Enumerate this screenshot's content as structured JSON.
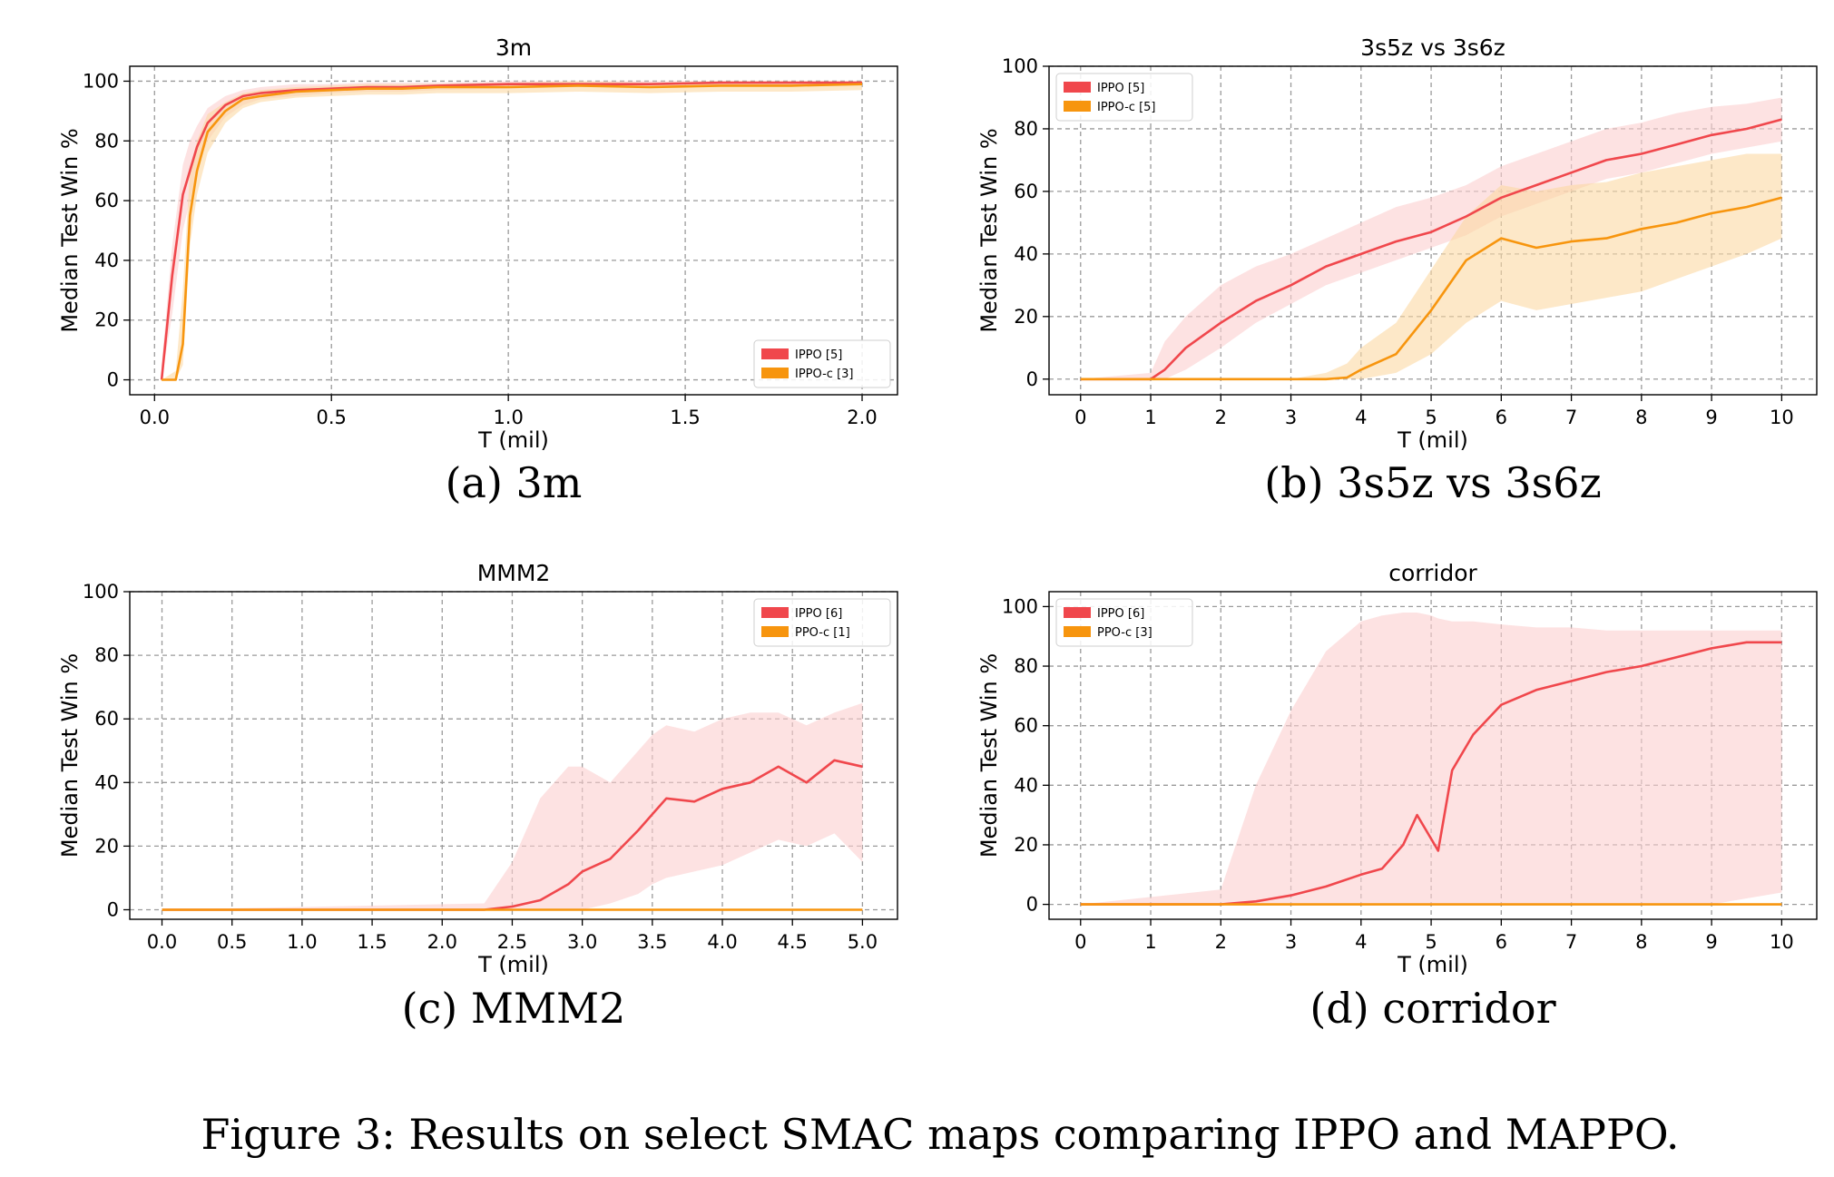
{
  "figure": {
    "caption": "Figure 3: Results on select SMAC maps comparing IPPO and MAPPO."
  },
  "colors": {
    "ippo": "#f0474c",
    "ippo_band": "#fbcfcf",
    "ippoc": "#f7950e",
    "ippoc_band": "#fcd9a3",
    "grid": "#9a9a9a"
  },
  "chart_data": [
    {
      "type": "line",
      "title": "3m",
      "subcaption": "(a) 3m",
      "xlabel": "T (mil)",
      "ylabel": "Median Test Win %",
      "xlim": [
        -0.07,
        2.1
      ],
      "ylim": [
        -5,
        105
      ],
      "xticks": [
        0,
        0.5,
        1,
        1.5,
        2
      ],
      "xtick_labels": [
        "0.0",
        "0.5",
        "1.0",
        "1.5",
        "2.0"
      ],
      "yticks": [
        0,
        20,
        40,
        60,
        80,
        100
      ],
      "ytick_labels": [
        "0",
        "20",
        "40",
        "60",
        "80",
        "100"
      ],
      "grid": true,
      "legend_position": "lower-right",
      "series": [
        {
          "name": "IPPO [5]",
          "color_key": "ippo",
          "x": [
            0.02,
            0.05,
            0.08,
            0.1,
            0.12,
            0.15,
            0.2,
            0.25,
            0.3,
            0.4,
            0.5,
            0.6,
            0.7,
            0.8,
            1.0,
            1.2,
            1.4,
            1.6,
            1.8,
            2.0
          ],
          "y": [
            0,
            35,
            62,
            70,
            78,
            86,
            92,
            95,
            96,
            97,
            97.5,
            98,
            98,
            98.5,
            99,
            99,
            99,
            99.5,
            99.5,
            99.5
          ],
          "band_low": [
            0,
            22,
            50,
            60,
            70,
            80,
            88,
            92,
            94,
            95,
            96,
            96.5,
            96.5,
            97,
            97.5,
            98,
            98,
            98.5,
            98.5,
            98.5
          ],
          "band_high": [
            5,
            45,
            72,
            80,
            85,
            91,
            95,
            97,
            98,
            99,
            99,
            99.5,
            99.5,
            99.5,
            100,
            100,
            100,
            100,
            100,
            100
          ]
        },
        {
          "name": "IPPO-c [3]",
          "color_key": "ippoc",
          "x": [
            0.02,
            0.06,
            0.08,
            0.1,
            0.12,
            0.15,
            0.2,
            0.25,
            0.3,
            0.4,
            0.5,
            0.6,
            0.7,
            0.8,
            1.0,
            1.2,
            1.4,
            1.6,
            1.8,
            2.0
          ],
          "y": [
            0,
            0,
            12,
            55,
            70,
            83,
            90,
            94,
            95,
            96.5,
            97,
            97.5,
            97.5,
            98,
            98,
            98.5,
            98,
            98.5,
            98.5,
            99
          ],
          "band_low": [
            0,
            0,
            5,
            45,
            62,
            76,
            86,
            91,
            93,
            94.5,
            95,
            95.5,
            95.5,
            96,
            96,
            96.5,
            96,
            96.5,
            96.5,
            97
          ],
          "band_high": [
            0,
            3,
            30,
            70,
            80,
            89,
            93,
            96,
            97,
            98,
            98.5,
            99,
            99,
            99,
            99.5,
            100,
            99.5,
            100,
            100,
            100
          ]
        }
      ]
    },
    {
      "type": "line",
      "title": "3s5z vs 3s6z",
      "subcaption": "(b) 3s5z vs 3s6z",
      "xlabel": "T (mil)",
      "ylabel": "Median Test Win %",
      "xlim": [
        -0.45,
        10.5
      ],
      "ylim": [
        -5,
        100
      ],
      "xticks": [
        0,
        1,
        2,
        3,
        4,
        5,
        6,
        7,
        8,
        9,
        10
      ],
      "xtick_labels": [
        "0",
        "1",
        "2",
        "3",
        "4",
        "5",
        "6",
        "7",
        "8",
        "9",
        "10"
      ],
      "yticks": [
        0,
        20,
        40,
        60,
        80,
        100
      ],
      "ytick_labels": [
        "0",
        "20",
        "40",
        "60",
        "80",
        "100"
      ],
      "grid": true,
      "legend_position": "top-left",
      "series": [
        {
          "name": "IPPO [5]",
          "color_key": "ippo",
          "x": [
            0,
            1,
            1.2,
            1.5,
            2,
            2.5,
            3,
            3.5,
            4,
            4.5,
            5,
            5.5,
            6,
            6.5,
            7,
            7.5,
            8,
            8.5,
            9,
            9.5,
            10
          ],
          "y": [
            0,
            0,
            3,
            10,
            18,
            25,
            30,
            36,
            40,
            44,
            47,
            52,
            58,
            62,
            66,
            70,
            72,
            75,
            78,
            80,
            83
          ],
          "band_low": [
            0,
            0,
            0,
            3,
            10,
            18,
            24,
            30,
            34,
            38,
            42,
            46,
            52,
            56,
            60,
            64,
            66,
            69,
            72,
            74,
            76
          ],
          "band_high": [
            0,
            2,
            12,
            20,
            30,
            36,
            40,
            45,
            50,
            55,
            58,
            62,
            68,
            72,
            76,
            80,
            82,
            85,
            87,
            88,
            90
          ]
        },
        {
          "name": "IPPO-c [5]",
          "color_key": "ippoc",
          "x": [
            0,
            3,
            3.5,
            3.8,
            4,
            4.5,
            5,
            5.5,
            6,
            6.5,
            7,
            7.5,
            8,
            8.5,
            9,
            9.5,
            10
          ],
          "y": [
            0,
            0,
            0,
            0.5,
            3,
            8,
            22,
            38,
            45,
            42,
            44,
            45,
            48,
            50,
            53,
            55,
            58
          ],
          "band_low": [
            0,
            0,
            0,
            0,
            0,
            2,
            8,
            18,
            25,
            22,
            24,
            26,
            28,
            32,
            36,
            40,
            45
          ],
          "band_high": [
            0,
            0,
            2,
            5,
            10,
            18,
            35,
            52,
            62,
            60,
            62,
            63,
            66,
            68,
            70,
            72,
            72
          ]
        }
      ]
    },
    {
      "type": "line",
      "title": "MMM2",
      "subcaption": "(c) MMM2",
      "xlabel": "T (mil)",
      "ylabel": "Median Test Win %",
      "xlim": [
        -0.23,
        5.25
      ],
      "ylim": [
        -3,
        100
      ],
      "xticks": [
        0,
        0.5,
        1,
        1.5,
        2,
        2.5,
        3,
        3.5,
        4,
        4.5,
        5
      ],
      "xtick_labels": [
        "0.0",
        "0.5",
        "1.0",
        "1.5",
        "2.0",
        "2.5",
        "3.0",
        "3.5",
        "4.0",
        "4.5",
        "5.0"
      ],
      "yticks": [
        0,
        20,
        40,
        60,
        80,
        100
      ],
      "ytick_labels": [
        "0",
        "20",
        "40",
        "60",
        "80",
        "100"
      ],
      "grid": true,
      "legend_position": "top-right",
      "series": [
        {
          "name": "IPPO [6]",
          "color_key": "ippo",
          "x": [
            0,
            2.3,
            2.5,
            2.7,
            2.9,
            3.0,
            3.2,
            3.4,
            3.5,
            3.6,
            3.8,
            4.0,
            4.2,
            4.4,
            4.6,
            4.8,
            5.0
          ],
          "y": [
            0,
            0,
            1,
            3,
            8,
            12,
            16,
            25,
            30,
            35,
            34,
            38,
            40,
            45,
            40,
            47,
            45
          ],
          "band_low": [
            0,
            0,
            0,
            0,
            0,
            0,
            2,
            5,
            8,
            10,
            12,
            14,
            18,
            22,
            20,
            24,
            15
          ],
          "band_high": [
            0,
            2,
            15,
            35,
            45,
            45,
            40,
            50,
            55,
            58,
            56,
            60,
            62,
            62,
            58,
            62,
            65
          ]
        },
        {
          "name": "PPO-c [1]",
          "color_key": "ippoc",
          "x": [
            0,
            1,
            2,
            3,
            4,
            5
          ],
          "y": [
            0,
            0,
            0,
            0,
            0,
            0
          ],
          "band_low": [
            0,
            0,
            0,
            0,
            0,
            0
          ],
          "band_high": [
            0,
            0,
            0,
            0,
            0,
            0
          ]
        }
      ]
    },
    {
      "type": "line",
      "title": "corridor",
      "subcaption": "(d) corridor",
      "xlabel": "T (mil)",
      "ylabel": "Median Test Win %",
      "xlim": [
        -0.45,
        10.5
      ],
      "ylim": [
        -5,
        105
      ],
      "xticks": [
        0,
        1,
        2,
        3,
        4,
        5,
        6,
        7,
        8,
        9,
        10
      ],
      "xtick_labels": [
        "0",
        "1",
        "2",
        "3",
        "4",
        "5",
        "6",
        "7",
        "8",
        "9",
        "10"
      ],
      "yticks": [
        0,
        20,
        40,
        60,
        80,
        100
      ],
      "ytick_labels": [
        "0",
        "20",
        "40",
        "60",
        "80",
        "100"
      ],
      "grid": true,
      "legend_position": "top-left",
      "series": [
        {
          "name": "IPPO [6]",
          "color_key": "ippo",
          "x": [
            0,
            2,
            2.5,
            3,
            3.5,
            4,
            4.3,
            4.6,
            4.8,
            5.0,
            5.1,
            5.3,
            5.6,
            6,
            6.5,
            7,
            7.5,
            8,
            8.5,
            9,
            9.5,
            10
          ],
          "y": [
            0,
            0,
            1,
            3,
            6,
            10,
            12,
            20,
            30,
            22,
            18,
            45,
            57,
            67,
            72,
            75,
            78,
            80,
            83,
            86,
            88,
            88
          ],
          "band_low": [
            0,
            0,
            0,
            0,
            0,
            0,
            0,
            0,
            0,
            0,
            0,
            0,
            0,
            0,
            0,
            0,
            0,
            0,
            0,
            0,
            2,
            4
          ],
          "band_high": [
            0,
            5,
            40,
            65,
            85,
            95,
            97,
            98,
            98,
            97,
            96,
            95,
            95,
            94,
            93,
            93,
            92,
            92,
            92,
            92,
            92,
            92
          ]
        },
        {
          "name": "PPO-c [3]",
          "color_key": "ippoc",
          "x": [
            0,
            2,
            4,
            6,
            8,
            10
          ],
          "y": [
            0,
            0,
            0,
            0,
            0,
            0
          ],
          "band_low": [
            0,
            0,
            0,
            0,
            0,
            0
          ],
          "band_high": [
            0,
            0,
            0,
            0,
            0,
            0
          ]
        }
      ]
    }
  ]
}
